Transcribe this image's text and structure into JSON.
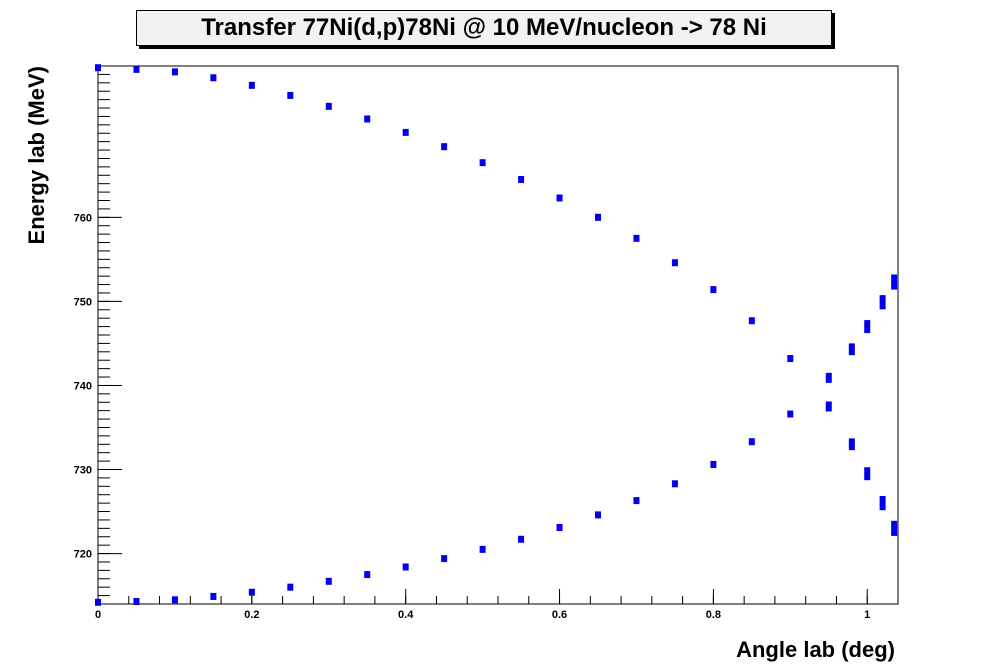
{
  "chart_data": {
    "type": "scatter",
    "title": "Transfer 77Ni(d,p)78Ni @ 10 MeV/nucleon -> 78 Ni",
    "xlabel": "Angle lab (deg)",
    "ylabel": "Energy lab (MeV)",
    "xlim": [
      0,
      1.04
    ],
    "ylim": [
      714,
      778
    ],
    "x_ticks": [
      "0",
      "0.2",
      "0.4",
      "0.6",
      "0.8",
      "1"
    ],
    "x_tick_values": [
      0,
      0.2,
      0.4,
      0.6,
      0.8,
      1.0
    ],
    "y_ticks": [
      "720",
      "730",
      "740",
      "750",
      "760"
    ],
    "y_tick_values": [
      720,
      730,
      740,
      750,
      760
    ],
    "grid": false,
    "marker_color": "#0000ee",
    "series": [
      {
        "x": [
          0.0,
          0.05,
          0.1,
          0.15,
          0.2,
          0.25,
          0.3,
          0.35,
          0.4,
          0.45,
          0.5,
          0.55,
          0.6,
          0.65,
          0.7,
          0.75,
          0.8,
          0.85,
          0.9,
          0.95,
          0.98,
          1.0,
          1.02,
          1.035
        ],
        "y": [
          777.8,
          777.6,
          777.3,
          776.6,
          775.7,
          774.5,
          773.2,
          771.7,
          770.1,
          768.4,
          766.5,
          764.5,
          762.3,
          760.0,
          757.5,
          754.6,
          751.4,
          747.7,
          743.2,
          737.5,
          733.0,
          729.5,
          726.0,
          723.0
        ]
      },
      {
        "x": [
          0.0,
          0.05,
          0.1,
          0.15,
          0.2,
          0.25,
          0.3,
          0.35,
          0.4,
          0.45,
          0.5,
          0.55,
          0.6,
          0.65,
          0.7,
          0.75,
          0.8,
          0.85,
          0.9,
          0.95,
          0.98,
          1.0,
          1.02,
          1.035
        ],
        "y": [
          714.2,
          714.3,
          714.5,
          714.9,
          715.4,
          716.0,
          716.7,
          717.5,
          718.4,
          719.4,
          720.5,
          721.7,
          723.1,
          724.6,
          726.3,
          728.3,
          730.6,
          733.3,
          736.6,
          740.9,
          744.3,
          747.0,
          749.9,
          752.3
        ]
      }
    ]
  }
}
